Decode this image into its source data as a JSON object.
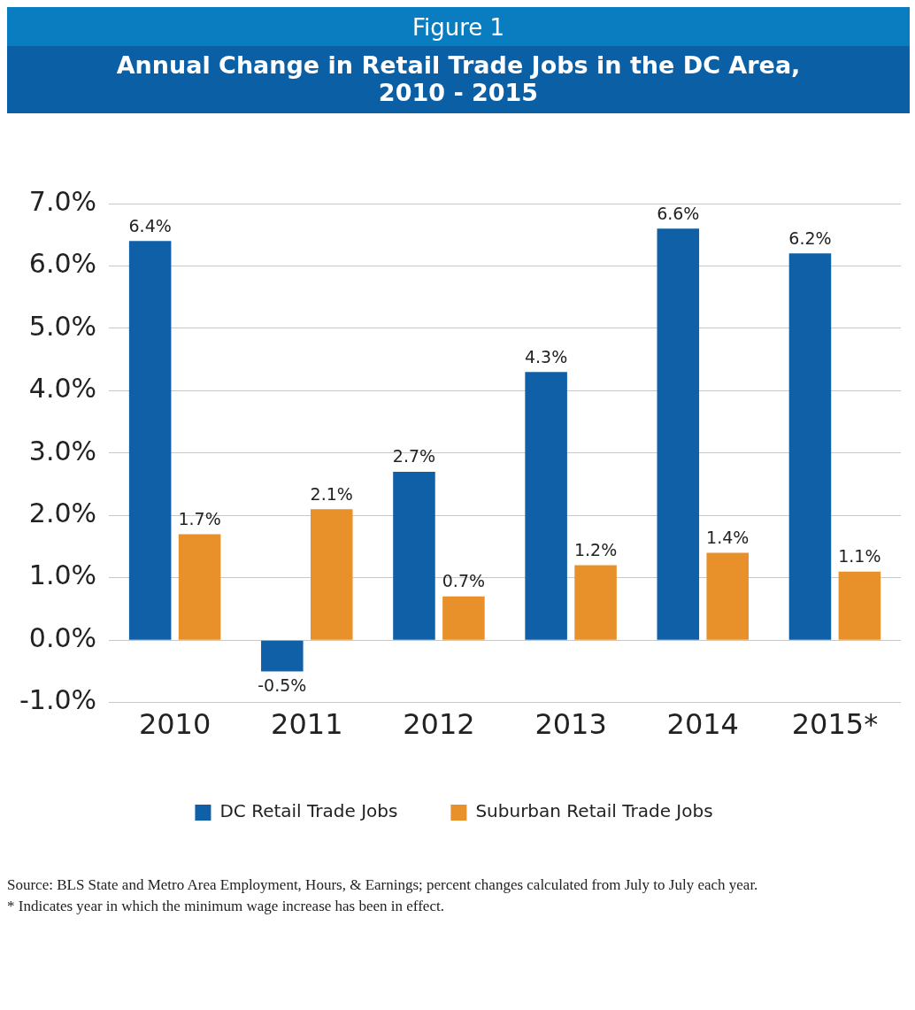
{
  "chart_data": {
    "type": "bar",
    "title": "Figure 1",
    "subtitle": "Annual Change in Retail Trade Jobs in the DC Area,\n2010 - 2015",
    "categories": [
      "2010",
      "2011",
      "2012",
      "2013",
      "2014",
      "2015*"
    ],
    "series": [
      {
        "name": "DC Retail Trade Jobs",
        "color": "#1060a8",
        "values": [
          6.4,
          -0.5,
          2.7,
          4.3,
          6.6,
          6.2
        ],
        "value_labels": [
          "6.4%",
          "-0.5%",
          "2.7%",
          "4.3%",
          "6.6%",
          "6.2%"
        ]
      },
      {
        "name": "Suburban Retail Trade Jobs",
        "color": "#e8912a",
        "values": [
          1.7,
          2.1,
          0.7,
          1.2,
          1.4,
          1.1
        ],
        "value_labels": [
          "1.7%",
          "2.1%",
          "0.7%",
          "1.2%",
          "1.4%",
          "1.1%"
        ]
      }
    ],
    "ylim": [
      -1,
      7
    ],
    "yticks": [
      {
        "value": -1,
        "label": "-1.0%"
      },
      {
        "value": 0,
        "label": "0.0%"
      },
      {
        "value": 1,
        "label": "1.0%"
      },
      {
        "value": 2,
        "label": "2.0%"
      },
      {
        "value": 3,
        "label": "3.0%"
      },
      {
        "value": 4,
        "label": "4.0%"
      },
      {
        "value": 5,
        "label": "5.0%"
      },
      {
        "value": 6,
        "label": "6.0%"
      },
      {
        "value": 7,
        "label": "7.0%"
      }
    ],
    "grid": "y",
    "legend": "bottom",
    "annotations": [
      "Source: BLS State and Metro Area Employment, Hours, & Earnings; percent changes calculated from July to July each year.",
      "* Indicates year in which the minimum wage increase has been in effect."
    ]
  }
}
